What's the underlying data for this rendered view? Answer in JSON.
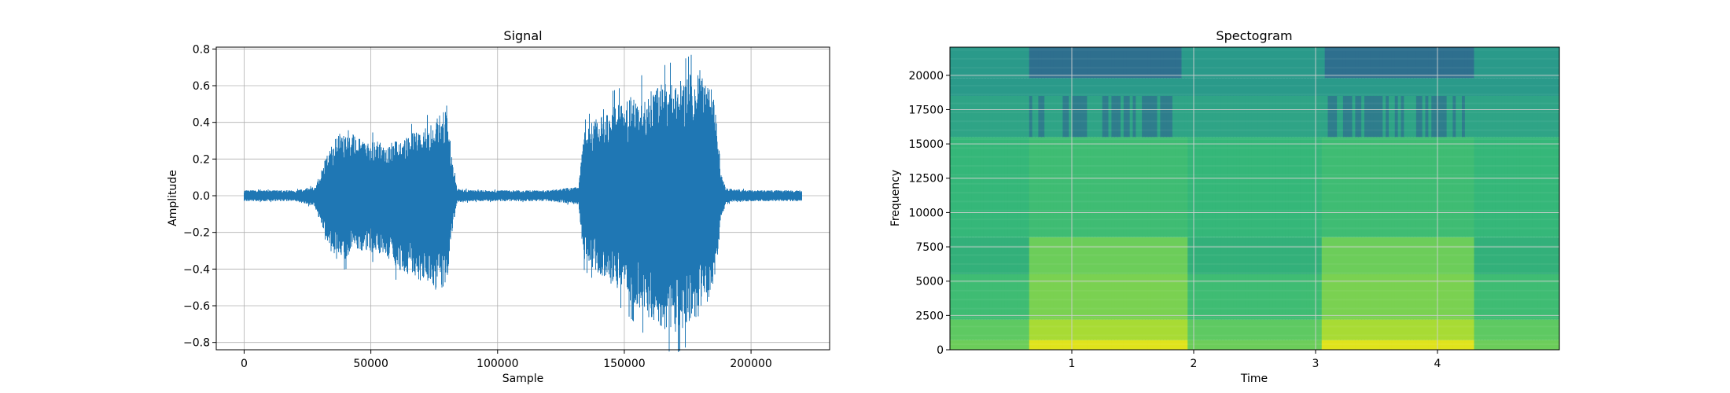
{
  "chart_data": [
    {
      "type": "line",
      "title": "Signal",
      "xlabel": "Sample",
      "ylabel": "Amplitude",
      "xlim": [
        -11000,
        231000
      ],
      "ylim": [
        -0.84,
        0.81
      ],
      "xticks": [
        0,
        50000,
        100000,
        150000,
        200000
      ],
      "xtick_labels": [
        "0",
        "50000",
        "100000",
        "150000",
        "200000"
      ],
      "yticks": [
        -0.8,
        -0.6,
        -0.4,
        -0.2,
        0.0,
        0.2,
        0.4,
        0.6,
        0.8
      ],
      "ytick_labels": [
        "−0.8",
        "−0.6",
        "−0.4",
        "−0.2",
        "0.0",
        "0.2",
        "0.4",
        "0.6",
        "0.8"
      ],
      "grid": true,
      "color": "#1f77b4",
      "series": [
        {
          "x": [
            0,
            10000,
            20000,
            28000,
            32000,
            36000,
            40000,
            44000,
            48000,
            52000,
            56000,
            60000,
            64000,
            68000,
            72000,
            76000,
            80000,
            82000,
            84000,
            90000,
            100000,
            110000,
            120000,
            132000,
            134000,
            138000,
            142000,
            146000,
            150000,
            154000,
            158000,
            162000,
            166000,
            170000,
            174000,
            178000,
            182000,
            186000,
            188000,
            190000,
            200000,
            210000,
            220000
          ],
          "upper": [
            0.03,
            0.03,
            0.03,
            0.05,
            0.2,
            0.32,
            0.38,
            0.32,
            0.3,
            0.3,
            0.28,
            0.3,
            0.33,
            0.35,
            0.38,
            0.42,
            0.5,
            0.2,
            0.04,
            0.03,
            0.03,
            0.03,
            0.03,
            0.05,
            0.35,
            0.42,
            0.48,
            0.5,
            0.52,
            0.55,
            0.58,
            0.6,
            0.62,
            0.64,
            0.65,
            0.68,
            0.72,
            0.5,
            0.15,
            0.04,
            0.03,
            0.03,
            0.03
          ],
          "lower": [
            -0.03,
            -0.03,
            -0.03,
            -0.06,
            -0.25,
            -0.35,
            -0.35,
            -0.3,
            -0.3,
            -0.32,
            -0.35,
            -0.4,
            -0.43,
            -0.46,
            -0.5,
            -0.52,
            -0.5,
            -0.2,
            -0.04,
            -0.03,
            -0.03,
            -0.03,
            -0.03,
            -0.05,
            -0.35,
            -0.4,
            -0.46,
            -0.5,
            -0.55,
            -0.6,
            -0.66,
            -0.7,
            -0.73,
            -0.75,
            -0.72,
            -0.68,
            -0.62,
            -0.45,
            -0.15,
            -0.04,
            -0.03,
            -0.03,
            -0.03
          ]
        }
      ]
    },
    {
      "type": "heatmap",
      "title": "Spectogram",
      "xlabel": "Time",
      "ylabel": "Frequency",
      "xlim": [
        0,
        5.0
      ],
      "ylim": [
        0,
        22050
      ],
      "xticks": [
        1,
        2,
        3,
        4
      ],
      "xtick_labels": [
        "1",
        "2",
        "3",
        "4"
      ],
      "yticks": [
        0,
        2500,
        5000,
        7500,
        10000,
        12500,
        15000,
        17500,
        20000
      ],
      "ytick_labels": [
        "0",
        "2500",
        "5000",
        "7500",
        "10000",
        "12500",
        "15000",
        "17500",
        "20000"
      ],
      "grid": true,
      "colormap": "viridis",
      "active_segments": [
        [
          0.65,
          1.95
        ],
        [
          3.05,
          4.3
        ]
      ],
      "quiet_bands": [
        [
          0.65,
          1.9
        ],
        [
          3.07,
          4.3
        ]
      ],
      "colors": {
        "top_band": "#2e6f8e",
        "upper": "#2a9a8a",
        "mid": "#35b779",
        "lower": "#5ec962",
        "low_active": "#a8db34",
        "base_active": "#e0e31c"
      }
    }
  ]
}
